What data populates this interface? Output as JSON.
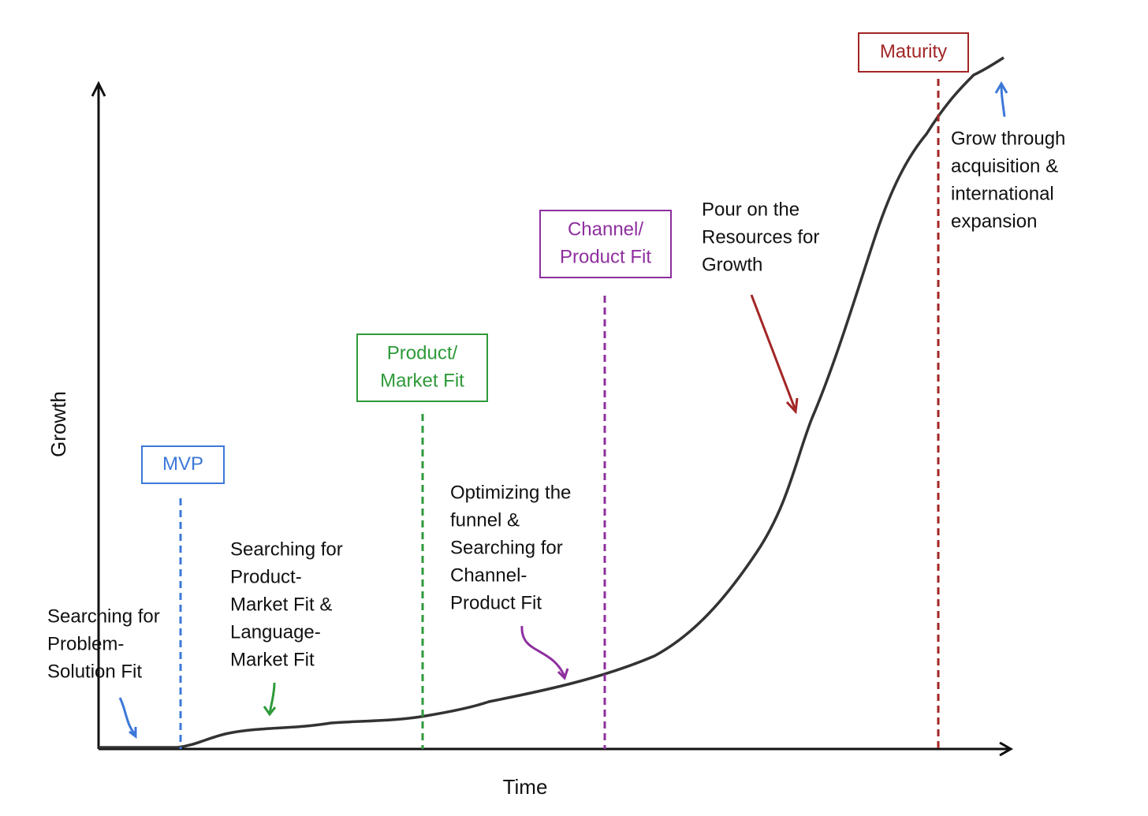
{
  "axes": {
    "x_label": "Time",
    "y_label": "Growth"
  },
  "stages": [
    {
      "label": [
        "MVP"
      ],
      "color": "#3c78d8"
    },
    {
      "label": [
        "Product/",
        "Market Fit"
      ],
      "color": "#2e9a3a"
    },
    {
      "label": [
        "Channel/",
        "Product Fit"
      ],
      "color": "#8e2f9e"
    },
    {
      "label": [
        "Maturity"
      ],
      "color": "#a32626"
    }
  ],
  "annotations": [
    {
      "lines": [
        "Searching for",
        "Problem-",
        "Solution Fit"
      ]
    },
    {
      "lines": [
        "Searching for",
        "Product-",
        "Market Fit &",
        "Language-",
        "Market Fit"
      ]
    },
    {
      "lines": [
        "Optimizing the",
        "funnel &",
        "Searching for",
        "Channel-",
        "Product Fit"
      ]
    },
    {
      "lines": [
        "Pour on the",
        "Resources for",
        "Growth"
      ]
    },
    {
      "lines": [
        "Grow through",
        "acquisition &",
        "international",
        "expansion"
      ]
    }
  ]
}
